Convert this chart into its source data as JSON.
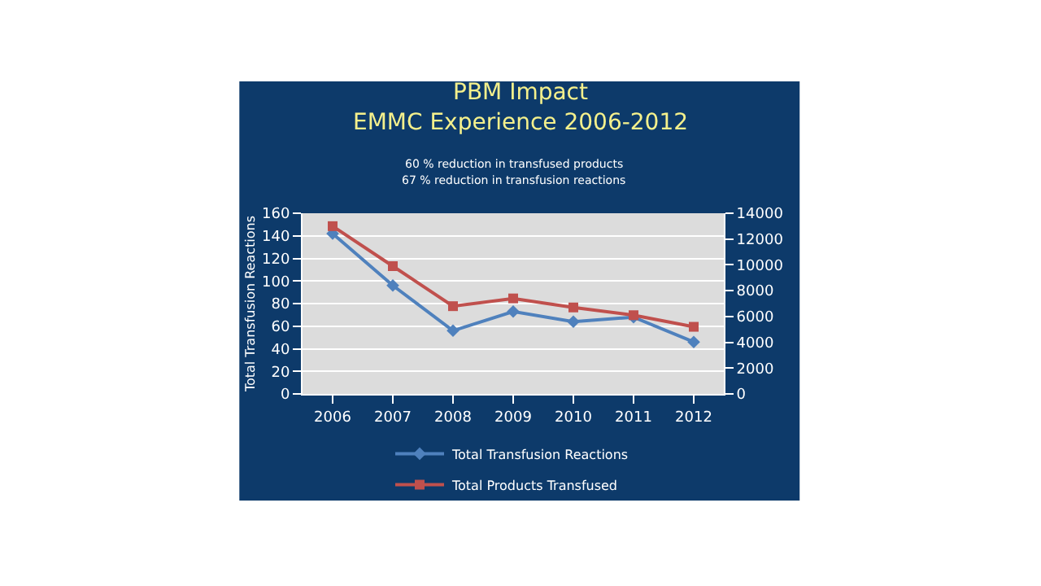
{
  "chart_data": {
    "type": "line",
    "title": "PBM Impact\nEMMC Experience 2006-2012",
    "annotations": [
      "60 % reduction in transfused products",
      "67 % reduction in transfusion reactions"
    ],
    "ylabel": "Total Transfusion Reactions",
    "categories": [
      "2006",
      "2007",
      "2008",
      "2009",
      "2010",
      "2011",
      "2012"
    ],
    "series": [
      {
        "name": "Total Transfusion Reactions",
        "color": "#4f81bd",
        "marker": "diamond",
        "values": [
          142,
          96,
          56,
          73,
          64,
          68,
          46
        ]
      },
      {
        "name": "Total Products Transfused",
        "color": "#c0504d",
        "marker": "square",
        "axis": "y2",
        "values": [
          13000,
          9900,
          6800,
          7400,
          6700,
          6100,
          5200
        ]
      }
    ],
    "ylim": [
      0,
      160
    ],
    "yticks": [
      0,
      20,
      40,
      60,
      80,
      100,
      120,
      140,
      160
    ],
    "y2lim": [
      0,
      14000
    ],
    "y2ticks": [
      0,
      2000,
      4000,
      6000,
      8000,
      10000,
      12000,
      14000
    ],
    "grid": "y",
    "legend": "bottom"
  }
}
